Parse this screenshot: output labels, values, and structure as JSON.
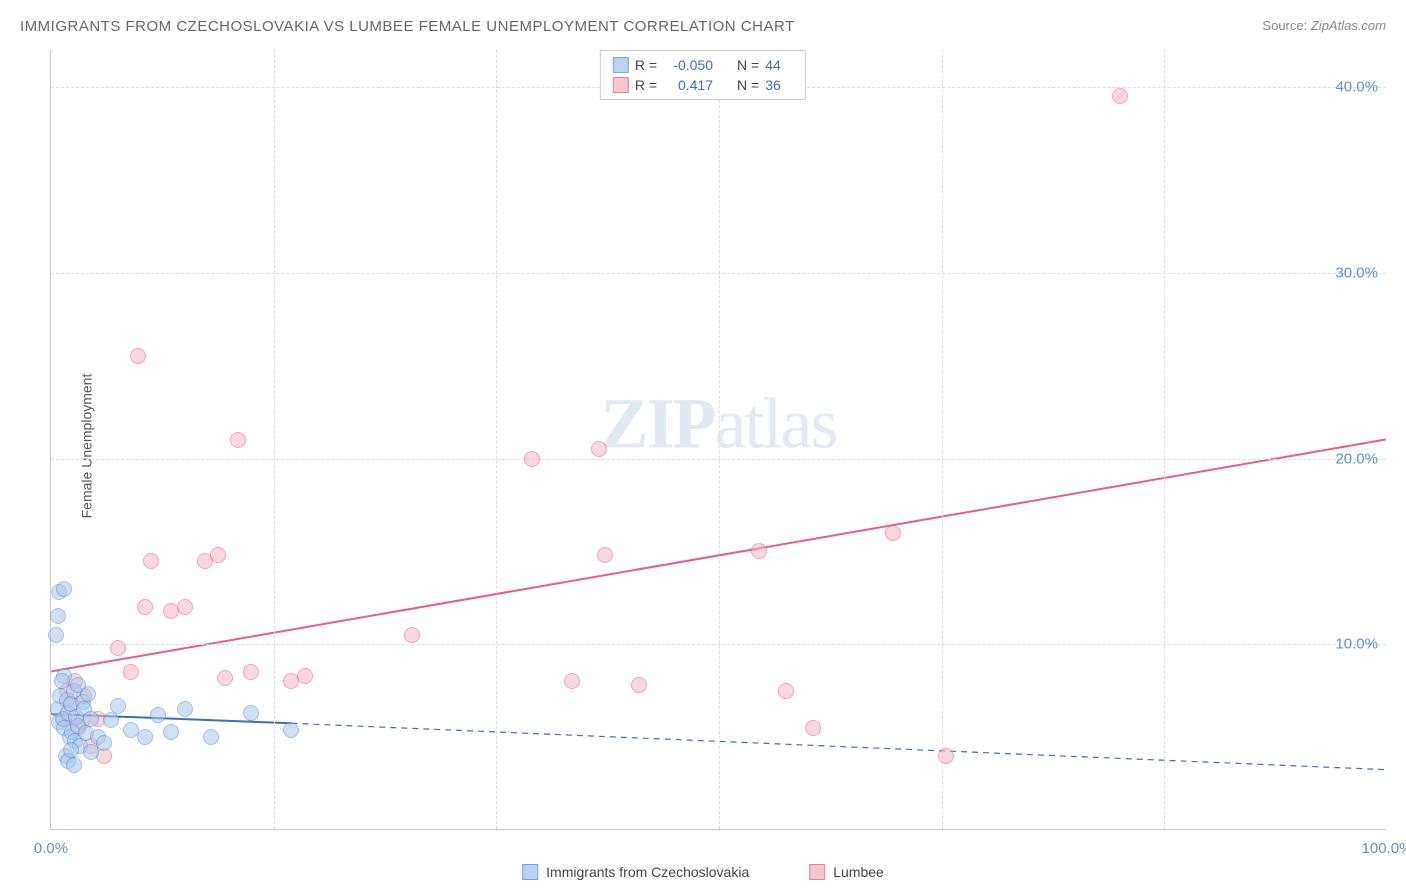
{
  "title": "IMMIGRANTS FROM CZECHOSLOVAKIA VS LUMBEE FEMALE UNEMPLOYMENT CORRELATION CHART",
  "source_label": "Source:",
  "source_value": "ZipAtlas.com",
  "ylabel": "Female Unemployment",
  "watermark_a": "ZIP",
  "watermark_b": "atlas",
  "chart": {
    "type": "scatter",
    "xlim": [
      0,
      100
    ],
    "ylim": [
      0,
      42
    ],
    "xtick_labels": [
      "0.0%",
      "100.0%"
    ],
    "xtick_positions": [
      0,
      100
    ],
    "ytick_labels": [
      "10.0%",
      "20.0%",
      "30.0%",
      "40.0%"
    ],
    "ytick_positions": [
      10,
      20,
      30,
      40
    ],
    "grid_h_positions": [
      10,
      20,
      30,
      40
    ],
    "grid_v_positions": [
      16.67,
      33.33,
      50,
      66.67,
      83.33
    ],
    "grid_color": "#dddddd",
    "background_color": "#ffffff",
    "marker_radius": 8,
    "marker_border_width": 1.2,
    "series": [
      {
        "name": "Immigrants from Czechoslovakia",
        "fill_color": "#a9c7ec",
        "fill_opacity": 0.55,
        "border_color": "#5b8fd6",
        "R": "-0.050",
        "N": "44",
        "regression": {
          "x1": 0,
          "y1": 6.2,
          "x2": 18,
          "y2": 5.7,
          "x2_dash": 100,
          "y2_dash": 3.2,
          "stroke": "#3d6fb5",
          "width": 2
        },
        "points": [
          [
            0.5,
            6.5
          ],
          [
            0.6,
            5.8
          ],
          [
            0.7,
            7.2
          ],
          [
            0.9,
            6.0
          ],
          [
            1.0,
            5.5
          ],
          [
            1.2,
            7.0
          ],
          [
            1.3,
            6.3
          ],
          [
            1.4,
            5.0
          ],
          [
            1.5,
            6.8
          ],
          [
            1.6,
            5.3
          ],
          [
            1.7,
            7.5
          ],
          [
            1.8,
            4.8
          ],
          [
            1.9,
            6.1
          ],
          [
            2.0,
            5.6
          ],
          [
            2.2,
            4.5
          ],
          [
            2.4,
            6.9
          ],
          [
            2.6,
            5.2
          ],
          [
            2.8,
            7.3
          ],
          [
            3.0,
            4.2
          ],
          [
            1.0,
            8.3
          ],
          [
            0.8,
            8.0
          ],
          [
            1.1,
            4.0
          ],
          [
            1.3,
            3.7
          ],
          [
            1.5,
            4.3
          ],
          [
            1.7,
            3.5
          ],
          [
            0.4,
            10.5
          ],
          [
            0.6,
            12.8
          ],
          [
            0.5,
            11.5
          ],
          [
            1.0,
            13.0
          ],
          [
            2.0,
            7.8
          ],
          [
            2.5,
            6.5
          ],
          [
            3.0,
            6.0
          ],
          [
            3.5,
            5.0
          ],
          [
            4.0,
            4.7
          ],
          [
            4.5,
            5.9
          ],
          [
            5.0,
            6.7
          ],
          [
            6.0,
            5.4
          ],
          [
            7.0,
            5.0
          ],
          [
            8.0,
            6.2
          ],
          [
            9.0,
            5.3
          ],
          [
            10.0,
            6.5
          ],
          [
            12.0,
            5.0
          ],
          [
            15.0,
            6.3
          ],
          [
            18.0,
            5.4
          ]
        ]
      },
      {
        "name": "Lumbee",
        "fill_color": "#f6b8c5",
        "fill_opacity": 0.55,
        "border_color": "#e85f86",
        "R": "0.417",
        "N": "36",
        "regression": {
          "x1": 0,
          "y1": 8.5,
          "x2": 100,
          "y2": 21.0,
          "stroke": "#e85f86",
          "width": 2
        },
        "points": [
          [
            1.0,
            6.0
          ],
          [
            1.5,
            6.8
          ],
          [
            2.0,
            5.5
          ],
          [
            2.5,
            7.2
          ],
          [
            3.0,
            4.5
          ],
          [
            3.5,
            6.0
          ],
          [
            4.0,
            4.0
          ],
          [
            1.2,
            7.5
          ],
          [
            1.8,
            8.0
          ],
          [
            2.3,
            5.8
          ],
          [
            5.0,
            9.8
          ],
          [
            6.0,
            8.5
          ],
          [
            7.0,
            12.0
          ],
          [
            7.5,
            14.5
          ],
          [
            9.0,
            11.8
          ],
          [
            10.0,
            12.0
          ],
          [
            11.5,
            14.5
          ],
          [
            12.5,
            14.8
          ],
          [
            13.0,
            8.2
          ],
          [
            14.0,
            21.0
          ],
          [
            15.0,
            8.5
          ],
          [
            18.0,
            8.0
          ],
          [
            19.0,
            8.3
          ],
          [
            6.5,
            25.5
          ],
          [
            27.0,
            10.5
          ],
          [
            39.0,
            8.0
          ],
          [
            41.0,
            20.5
          ],
          [
            41.5,
            14.8
          ],
          [
            44.0,
            7.8
          ],
          [
            53.0,
            15.0
          ],
          [
            55.0,
            7.5
          ],
          [
            57.0,
            5.5
          ],
          [
            63.0,
            16.0
          ],
          [
            67.0,
            4.0
          ],
          [
            80.0,
            39.5
          ],
          [
            36.0,
            20.0
          ]
        ]
      }
    ]
  },
  "legend_bottom": [
    {
      "label": "Immigrants from Czechoslovakia",
      "fill": "#a9c7ec",
      "border": "#5b8fd6"
    },
    {
      "label": "Lumbee",
      "fill": "#f6b8c5",
      "border": "#e85f86"
    }
  ],
  "stats_legend_labels": {
    "R": "R =",
    "N": "N ="
  }
}
